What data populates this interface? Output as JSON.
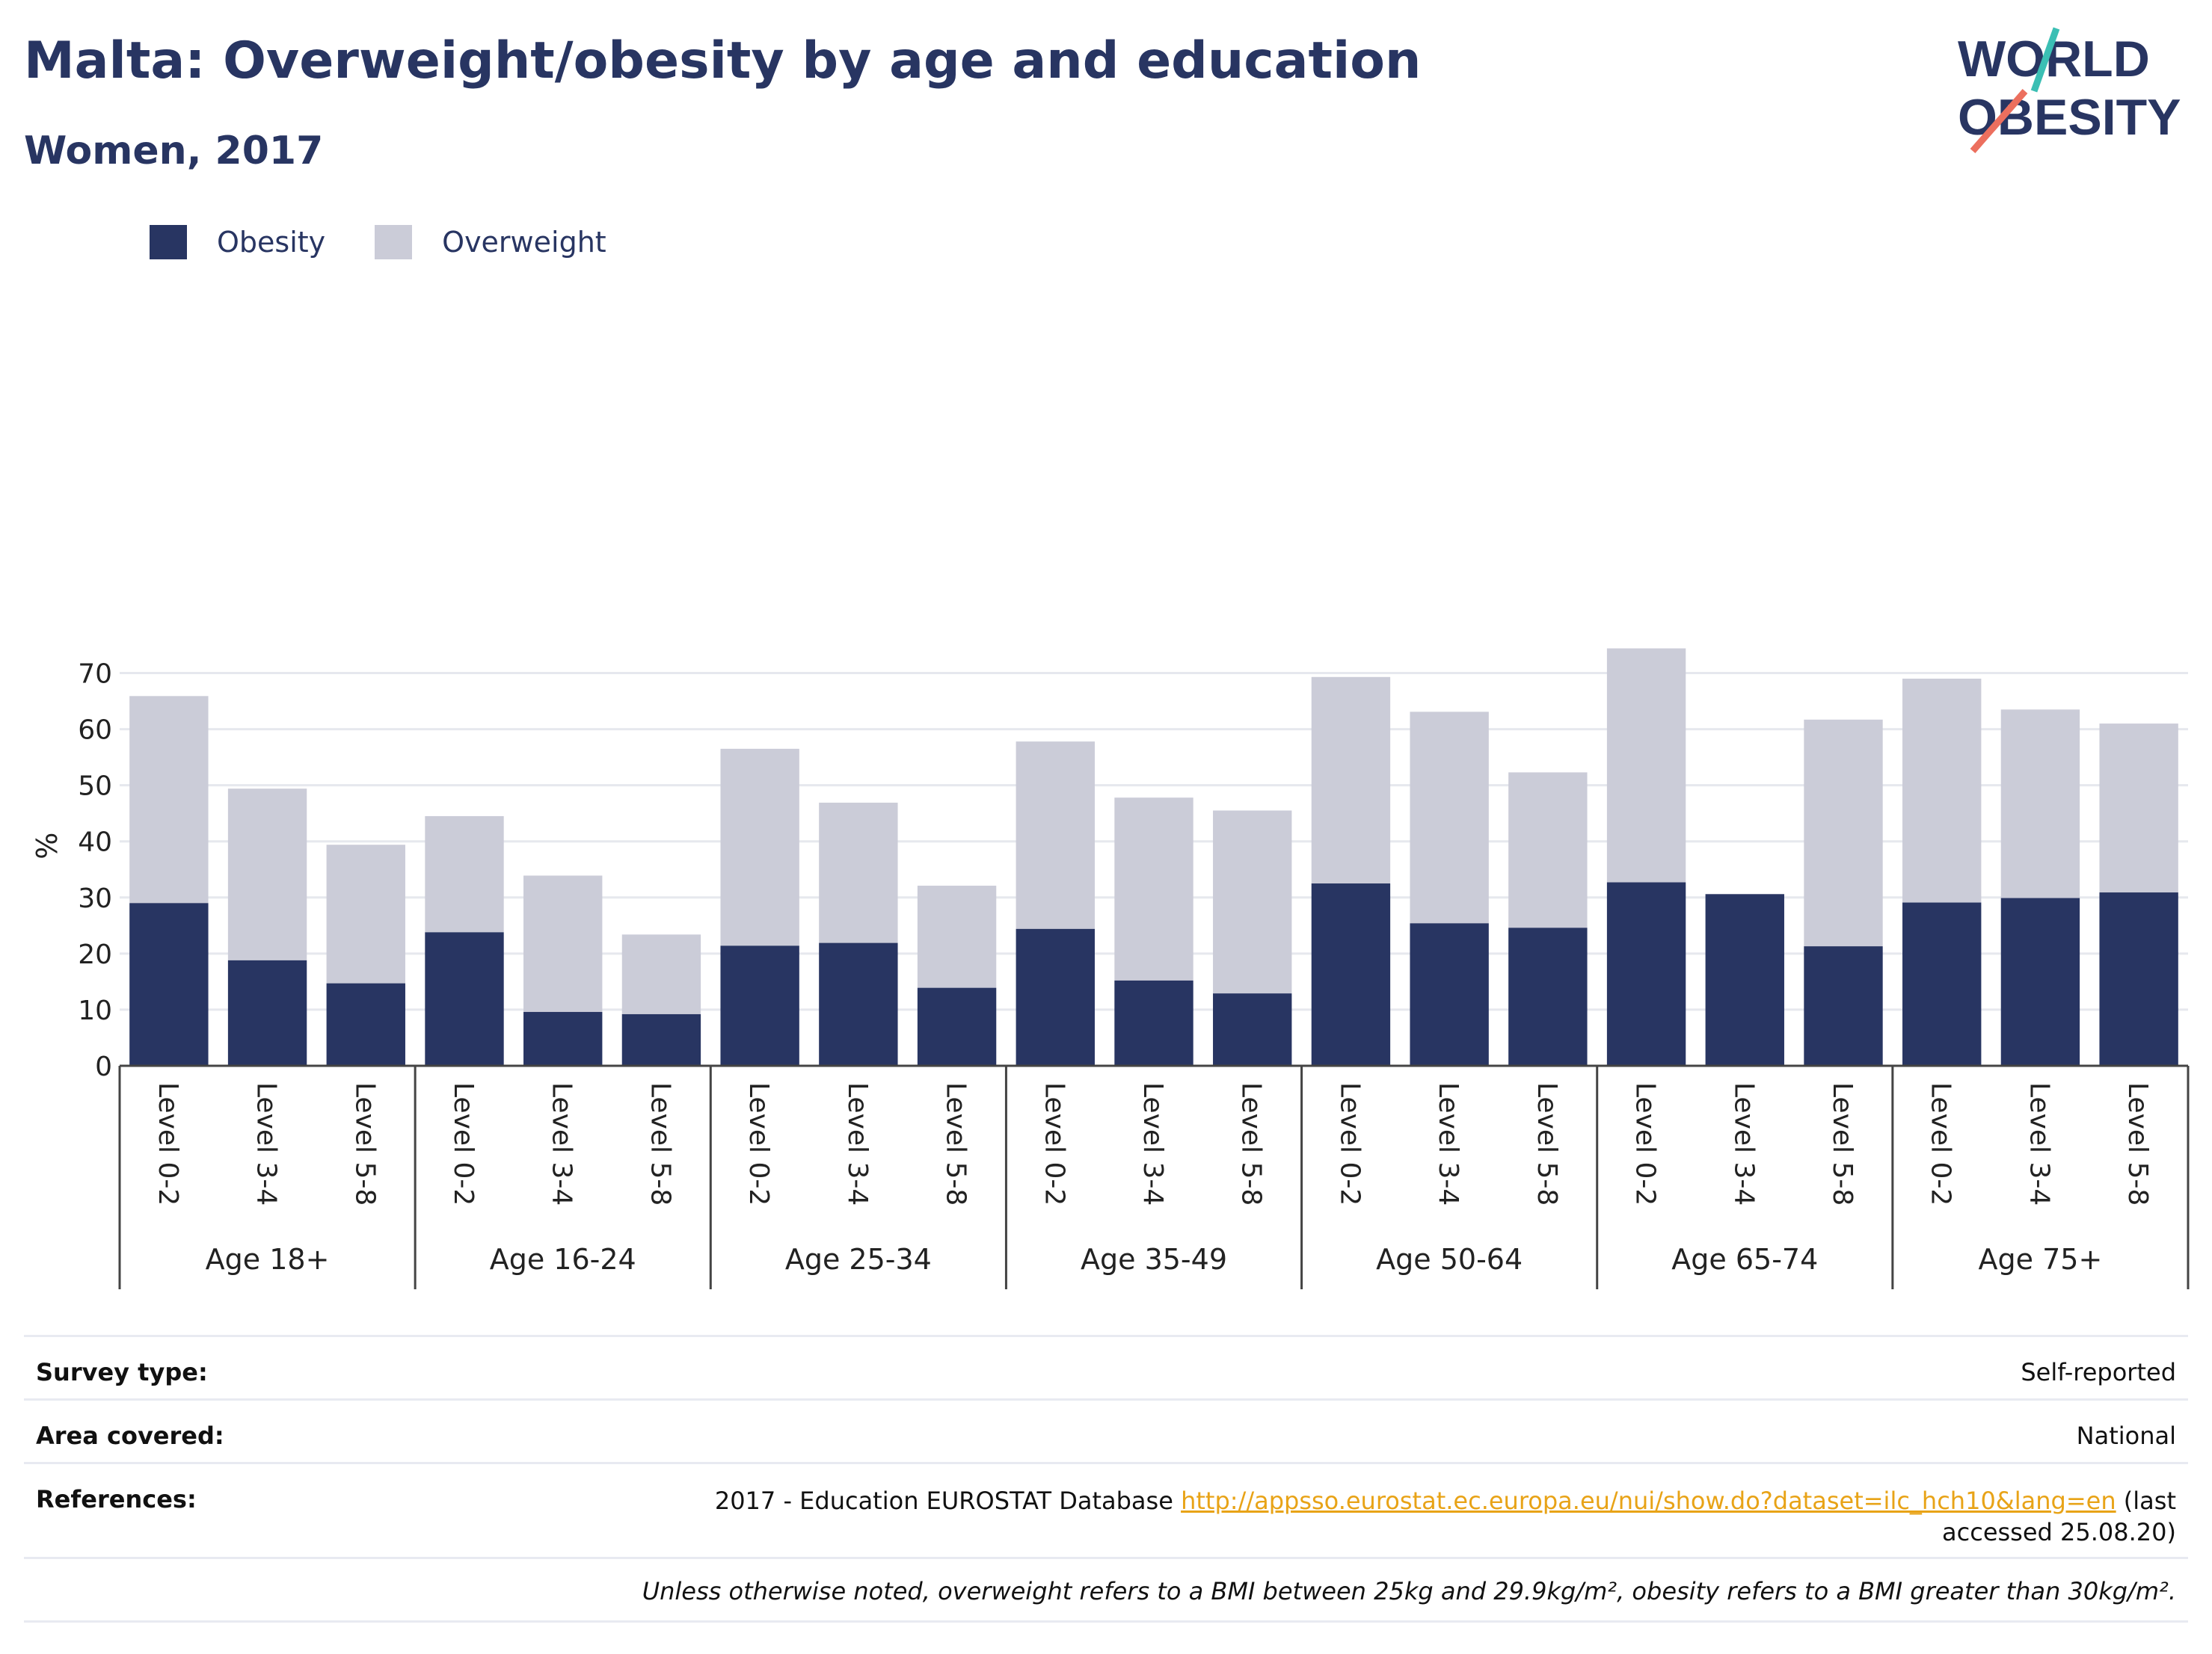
{
  "header": {
    "title": "Malta: Overweight/obesity by age and education",
    "subtitle": "Women, 2017"
  },
  "logo": {
    "line1": "WORLD",
    "line2": "OBESITY",
    "icon": "world-obesity-logo"
  },
  "legend": {
    "items": [
      "Obesity",
      "Overweight"
    ]
  },
  "colors": {
    "obesity": "#283562",
    "overweight": "#cbccd8",
    "grid": "#e6e8ee",
    "link": "#e8a317"
  },
  "chart_data": {
    "type": "bar",
    "stacked": true,
    "ylabel": "%",
    "ylim": [
      0,
      75
    ],
    "yticks": [
      0,
      10,
      20,
      30,
      40,
      50,
      60,
      70
    ],
    "grid": true,
    "legend_position": "top-left",
    "groups": [
      "Age 18+",
      "Age 16-24",
      "Age 25-34",
      "Age 35-49",
      "Age 50-64",
      "Age 65-74",
      "Age 75+"
    ],
    "levels": [
      "Level 0-2",
      "Level 3-4",
      "Level 5-8"
    ],
    "series": [
      {
        "name": "Obesity",
        "values": [
          [
            29.0,
            18.8,
            14.7
          ],
          [
            23.8,
            9.6,
            9.2
          ],
          [
            21.4,
            21.9,
            13.9
          ],
          [
            24.4,
            15.2,
            12.9
          ],
          [
            32.5,
            25.4,
            24.6
          ],
          [
            32.7,
            30.6,
            21.3
          ],
          [
            29.1,
            29.9,
            30.9
          ]
        ]
      },
      {
        "name": "Overweight",
        "values": [
          [
            36.9,
            30.6,
            24.7
          ],
          [
            20.7,
            24.3,
            14.2
          ],
          [
            35.1,
            25.0,
            18.2
          ],
          [
            33.4,
            32.6,
            32.6
          ],
          [
            36.8,
            37.7,
            27.7
          ],
          [
            41.7,
            0.0,
            40.4
          ],
          [
            39.9,
            33.6,
            30.1
          ]
        ]
      }
    ]
  },
  "info": {
    "survey_type": {
      "label": "Survey type:",
      "value": "Self-reported"
    },
    "area_covered": {
      "label": "Area covered:",
      "value": "National"
    },
    "references": {
      "label": "References:",
      "prefix": "2017 - Education EUROSTAT Database",
      "url": "http://appsso.eurostat.ec.europa.eu/nui/show.do?dataset=ilc_hch10&lang=en",
      "suffix": "(last accessed 25.08.20)"
    },
    "footnote": "Unless otherwise noted, overweight refers to a BMI between 25kg and 29.9kg/m², obesity refers to a BMI greater than 30kg/m²."
  }
}
